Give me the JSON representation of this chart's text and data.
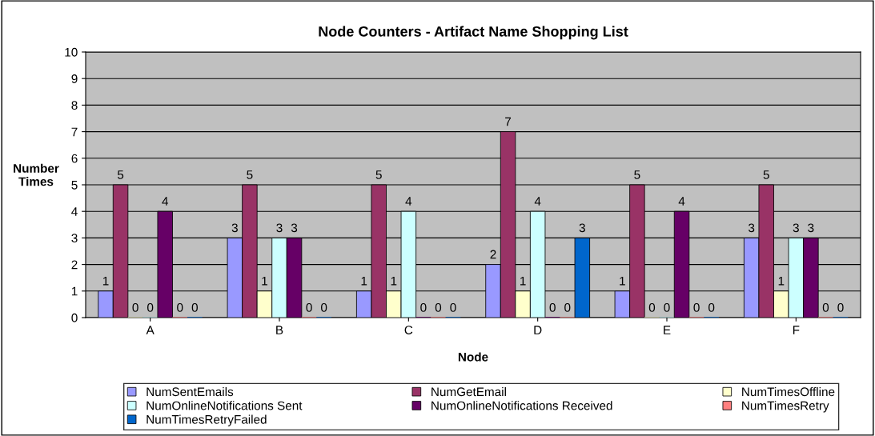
{
  "chart_data": {
    "type": "bar",
    "title": "Node Counters - Artifact Name Shopping List",
    "xlabel": "Node",
    "ylabel": "Number\nTimes",
    "categories": [
      "A",
      "B",
      "C",
      "D",
      "E",
      "F"
    ],
    "series": [
      {
        "name": "NumSentEmails",
        "color": "#9999ff",
        "values": [
          1,
          3,
          1,
          2,
          1,
          3
        ]
      },
      {
        "name": "NumGetEmail",
        "color": "#993366",
        "values": [
          5,
          5,
          5,
          7,
          5,
          5
        ]
      },
      {
        "name": "NumTimesOffline",
        "color": "#ffffcc",
        "values": [
          0,
          1,
          1,
          1,
          0,
          1
        ]
      },
      {
        "name": "NumOnlineNotifications Sent",
        "color": "#ccffff",
        "values": [
          0,
          3,
          4,
          4,
          0,
          3
        ]
      },
      {
        "name": "NumOnlineNotifications Received",
        "color": "#660066",
        "values": [
          4,
          3,
          0,
          0,
          4,
          3
        ]
      },
      {
        "name": "NumTimesRetry",
        "color": "#ff8080",
        "values": [
          0,
          0,
          0,
          0,
          0,
          0
        ]
      },
      {
        "name": "NumTimesRetryFailed",
        "color": "#0066cc",
        "values": [
          0,
          0,
          0,
          3,
          0,
          0
        ]
      }
    ],
    "ylim": [
      0,
      10
    ],
    "yticks": [
      0,
      1,
      2,
      3,
      4,
      5,
      6,
      7,
      8,
      9,
      10
    ],
    "grid": "y",
    "legend": "bottom",
    "data_labels": true
  }
}
